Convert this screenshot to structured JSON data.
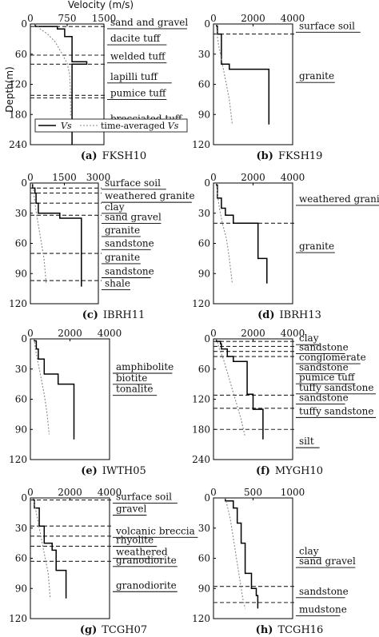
{
  "figure": {
    "velocity_label": "Velocity (m/s)",
    "depth_label": "Depth(m)"
  },
  "legend": {
    "vs_label": "Vs",
    "avg_prefix": "time-averaged ",
    "avg_var": "Vs"
  },
  "chart_data": [
    {
      "id": "a",
      "type": "line",
      "tag": "(a)",
      "title": "FKSH10",
      "xlabel": "Velocity (m/s)",
      "ylabel": "Depth(m)",
      "xlim": [
        0,
        1500
      ],
      "ylim": [
        0,
        240
      ],
      "x_ticks": [
        "0",
        "750",
        "1500"
      ],
      "y_ticks": [
        "0",
        "60",
        "120",
        "180",
        "240"
      ],
      "series": [
        {
          "name": "Vs",
          "points": [
            [
              100,
              0
            ],
            [
              100,
              5
            ],
            [
              550,
              5
            ],
            [
              550,
              10
            ],
            [
              700,
              10
            ],
            [
              700,
              25
            ],
            [
              850,
              25
            ],
            [
              850,
              75
            ],
            [
              1150,
              75
            ],
            [
              1150,
              80
            ],
            [
              850,
              80
            ],
            [
              850,
              250
            ]
          ]
        },
        {
          "name": "time-averaged Vs",
          "points": [
            [
              100,
              0
            ],
            [
              200,
              10
            ],
            [
              350,
              20
            ],
            [
              500,
              35
            ],
            [
              650,
              60
            ],
            [
              750,
              78
            ],
            [
              800,
              100
            ],
            [
              815,
              130
            ],
            [
              820,
              160
            ],
            [
              820,
              185
            ]
          ]
        }
      ],
      "layer_depths": [
        5,
        62,
        80,
        142,
        147
      ],
      "layers": [
        {
          "label": "sand and gravel",
          "depth": 3
        },
        {
          "label": "dacite tuff",
          "depth": 35
        },
        {
          "label": "welded tuff",
          "depth": 71
        },
        {
          "label": "lapilli tuff",
          "depth": 111
        },
        {
          "label": "pumice tuff",
          "depth": 144
        },
        {
          "label": "brecciated tuff",
          "depth": 195
        }
      ]
    },
    {
      "id": "b",
      "type": "line",
      "tag": "(b)",
      "title": "FKSH19",
      "xlabel": "Velocity (m/s)",
      "ylabel": "Depth(m)",
      "xlim": [
        0,
        4000
      ],
      "ylim": [
        0,
        120
      ],
      "x_ticks": [
        "0",
        "2000",
        "4000"
      ],
      "y_ticks": [
        "0",
        "30",
        "60",
        "90",
        "120"
      ],
      "series": [
        {
          "name": "Vs",
          "points": [
            [
              150,
              0
            ],
            [
              150,
              2
            ],
            [
              200,
              2
            ],
            [
              200,
              10
            ],
            [
              400,
              10
            ],
            [
              400,
              40
            ],
            [
              800,
              40
            ],
            [
              800,
              45
            ],
            [
              2800,
              45
            ],
            [
              2800,
              100
            ]
          ]
        },
        {
          "name": "time-averaged Vs",
          "points": [
            [
              150,
              0
            ],
            [
              180,
              10
            ],
            [
              250,
              20
            ],
            [
              400,
              35
            ],
            [
              600,
              55
            ],
            [
              800,
              75
            ],
            [
              950,
              100
            ]
          ]
        }
      ],
      "layer_depths": [
        10
      ],
      "layers": [
        {
          "label": "surface soil",
          "depth": 5
        },
        {
          "label": "granite",
          "depth": 55
        }
      ]
    },
    {
      "id": "c",
      "type": "line",
      "tag": "(c)",
      "title": "IBRH11",
      "xlabel": "Velocity (m/s)",
      "ylabel": "Depth(m)",
      "xlim": [
        0,
        3000
      ],
      "ylim": [
        0,
        120
      ],
      "x_ticks": [
        "0",
        "1500",
        "3000"
      ],
      "y_ticks": [
        "0",
        "30",
        "60",
        "90",
        "120"
      ],
      "series": [
        {
          "name": "Vs",
          "points": [
            [
              100,
              0
            ],
            [
              100,
              5
            ],
            [
              200,
              5
            ],
            [
              200,
              10
            ],
            [
              250,
              10
            ],
            [
              250,
              20
            ],
            [
              350,
              20
            ],
            [
              350,
              30
            ],
            [
              1300,
              30
            ],
            [
              1300,
              35
            ],
            [
              2250,
              35
            ],
            [
              2250,
              103
            ]
          ]
        },
        {
          "name": "time-averaged Vs",
          "points": [
            [
              100,
              0
            ],
            [
              150,
              10
            ],
            [
              200,
              20
            ],
            [
              300,
              35
            ],
            [
              450,
              55
            ],
            [
              600,
              75
            ],
            [
              700,
              100
            ]
          ]
        }
      ],
      "layer_depths": [
        5,
        10,
        20,
        32,
        70,
        97
      ],
      "layers": [
        {
          "label": "surface soil",
          "depth": 3
        },
        {
          "label": "weathered granite",
          "depth": 16
        },
        {
          "label": "clay",
          "depth": 27
        },
        {
          "label": "sand gravel",
          "depth": 37
        },
        {
          "label": "granite",
          "depth": 50
        },
        {
          "label": "sandstone",
          "depth": 63
        },
        {
          "label": "granite",
          "depth": 77
        },
        {
          "label": "sandstone",
          "depth": 91
        },
        {
          "label": "shale",
          "depth": 103
        }
      ]
    },
    {
      "id": "d",
      "type": "line",
      "tag": "(d)",
      "title": "IBRH13",
      "xlabel": "Velocity (m/s)",
      "ylabel": "Depth(m)",
      "xlim": [
        0,
        4000
      ],
      "ylim": [
        0,
        120
      ],
      "x_ticks": [
        "0",
        "2000",
        "4000"
      ],
      "y_ticks": [
        "0",
        "30",
        "60",
        "90",
        "120"
      ],
      "series": [
        {
          "name": "Vs",
          "points": [
            [
              150,
              0
            ],
            [
              150,
              2
            ],
            [
              200,
              2
            ],
            [
              200,
              15
            ],
            [
              400,
              15
            ],
            [
              400,
              25
            ],
            [
              600,
              25
            ],
            [
              600,
              32
            ],
            [
              1000,
              32
            ],
            [
              1000,
              40
            ],
            [
              2250,
              40
            ],
            [
              2250,
              75
            ],
            [
              2700,
              75
            ],
            [
              2700,
              100
            ]
          ]
        },
        {
          "name": "time-averaged Vs",
          "points": [
            [
              150,
              0
            ],
            [
              200,
              10
            ],
            [
              300,
              25
            ],
            [
              450,
              40
            ],
            [
              650,
              55
            ],
            [
              800,
              75
            ],
            [
              950,
              100
            ]
          ]
        }
      ],
      "layer_depths": [
        40
      ],
      "layers": [
        {
          "label": "weathered granite",
          "depth": 19
        },
        {
          "label": "granite",
          "depth": 66
        }
      ]
    },
    {
      "id": "e",
      "type": "line",
      "tag": "(e)",
      "title": "IWTH05",
      "xlabel": "Velocity (m/s)",
      "ylabel": "Depth(m)",
      "xlim": [
        0,
        4000
      ],
      "ylim": [
        0,
        120
      ],
      "x_ticks": [
        "0",
        "2000",
        "4000"
      ],
      "y_ticks": [
        "0",
        "30",
        "60",
        "90",
        "120"
      ],
      "series": [
        {
          "name": "Vs",
          "points": [
            [
              200,
              0
            ],
            [
              200,
              2
            ],
            [
              300,
              2
            ],
            [
              300,
              10
            ],
            [
              400,
              10
            ],
            [
              400,
              20
            ],
            [
              700,
              20
            ],
            [
              700,
              35
            ],
            [
              1400,
              35
            ],
            [
              1400,
              45
            ],
            [
              2200,
              45
            ],
            [
              2200,
              100
            ]
          ]
        },
        {
          "name": "time-averaged Vs",
          "points": [
            [
              200,
              0
            ],
            [
              250,
              10
            ],
            [
              350,
              20
            ],
            [
              500,
              35
            ],
            [
              700,
              55
            ],
            [
              850,
              75
            ],
            [
              950,
              95
            ]
          ]
        }
      ],
      "layer_depths": [],
      "layers": [
        {
          "label": "amphibolite",
          "depth": 31
        },
        {
          "label": "biotite",
          "depth": 42
        },
        {
          "label": "tonalite",
          "depth": 53
        }
      ]
    },
    {
      "id": "f",
      "type": "line",
      "tag": "(f)",
      "title": "MYGH10",
      "xlabel": "Velocity (m/s)",
      "ylabel": "Depth(m)",
      "xlim": [
        0,
        4000
      ],
      "ylim": [
        0,
        240
      ],
      "x_ticks": [
        "0",
        "2000",
        "4000"
      ],
      "y_ticks": [
        "0",
        "60",
        "120",
        "180",
        "240"
      ],
      "series": [
        {
          "name": "Vs",
          "points": [
            [
              150,
              0
            ],
            [
              150,
              5
            ],
            [
              350,
              5
            ],
            [
              350,
              10
            ],
            [
              400,
              10
            ],
            [
              400,
              20
            ],
            [
              700,
              20
            ],
            [
              700,
              35
            ],
            [
              1000,
              35
            ],
            [
              1000,
              45
            ],
            [
              1700,
              45
            ],
            [
              1700,
              110
            ],
            [
              2000,
              110
            ],
            [
              2000,
              140
            ],
            [
              2500,
              140
            ],
            [
              2500,
              200
            ]
          ]
        },
        {
          "name": "time-averaged Vs",
          "points": [
            [
              150,
              0
            ],
            [
              300,
              20
            ],
            [
              500,
              40
            ],
            [
              800,
              80
            ],
            [
              1100,
              120
            ],
            [
              1400,
              160
            ],
            [
              1600,
              195
            ]
          ]
        }
      ],
      "layer_depths": [
        5,
        15,
        25,
        35,
        112,
        138,
        180
      ],
      "layers": [
        {
          "label": "clay",
          "depth": 5
        },
        {
          "label": "sandstone",
          "depth": 23
        },
        {
          "label": "conglomerate",
          "depth": 43
        },
        {
          "label": "sandstone",
          "depth": 63
        },
        {
          "label": "pumice tuff",
          "depth": 83
        },
        {
          "label": "tuffy sandstone",
          "depth": 103
        },
        {
          "label": "sandstone",
          "depth": 123
        },
        {
          "label": "tuffy sandstone",
          "depth": 150
        },
        {
          "label": "silt",
          "depth": 210
        }
      ]
    },
    {
      "id": "g",
      "type": "line",
      "tag": "(g)",
      "title": "TCGH07",
      "xlabel": "Velocity (m/s)",
      "ylabel": "Depth(m)",
      "xlim": [
        0,
        4000
      ],
      "ylim": [
        0,
        120
      ],
      "x_ticks": [
        "0",
        "2000",
        "4000"
      ],
      "y_ticks": [
        "0",
        "30",
        "60",
        "90",
        "120"
      ],
      "series": [
        {
          "name": "Vs",
          "points": [
            [
              150,
              0
            ],
            [
              150,
              2
            ],
            [
              200,
              2
            ],
            [
              200,
              10
            ],
            [
              450,
              10
            ],
            [
              450,
              28
            ],
            [
              700,
              28
            ],
            [
              700,
              45
            ],
            [
              1100,
              45
            ],
            [
              1100,
              52
            ],
            [
              1300,
              52
            ],
            [
              1300,
              72
            ],
            [
              1800,
              72
            ],
            [
              1800,
              100
            ]
          ]
        },
        {
          "name": "time-averaged Vs",
          "points": [
            [
              150,
              0
            ],
            [
              250,
              10
            ],
            [
              400,
              25
            ],
            [
              550,
              40
            ],
            [
              700,
              55
            ],
            [
              900,
              75
            ],
            [
              1000,
              100
            ]
          ]
        }
      ],
      "layer_depths": [
        2,
        28,
        38,
        48,
        63
      ],
      "layers": [
        {
          "label": "surface soil",
          "depth": 2
        },
        {
          "label": "gravel",
          "depth": 14
        },
        {
          "label": "volcanic breccia",
          "depth": 36
        },
        {
          "label": "rhyolite",
          "depth": 45
        },
        {
          "label": "weathered",
          "depth": 57
        },
        {
          "label": "granodiorite",
          "depth": 65
        },
        {
          "label": "granodiorite",
          "depth": 90
        }
      ]
    },
    {
      "id": "h",
      "type": "line",
      "tag": "(h)",
      "title": "TCGH16",
      "xlabel": "Velocity (m/s)",
      "ylabel": "Depth(m)",
      "xlim": [
        0,
        1000
      ],
      "ylim": [
        0,
        120
      ],
      "x_ticks": [
        "0",
        "500",
        "1000"
      ],
      "y_ticks": [
        "0",
        "30",
        "60",
        "90",
        "120"
      ],
      "series": [
        {
          "name": "Vs",
          "points": [
            [
              150,
              0
            ],
            [
              150,
              3
            ],
            [
              250,
              3
            ],
            [
              250,
              10
            ],
            [
              300,
              10
            ],
            [
              300,
              25
            ],
            [
              350,
              25
            ],
            [
              350,
              45
            ],
            [
              400,
              45
            ],
            [
              400,
              75
            ],
            [
              480,
              75
            ],
            [
              480,
              90
            ],
            [
              540,
              90
            ],
            [
              540,
              97
            ],
            [
              560,
              97
            ],
            [
              560,
              110
            ]
          ]
        },
        {
          "name": "time-averaged Vs",
          "points": [
            [
              150,
              0
            ],
            [
              180,
              10
            ],
            [
              210,
              20
            ],
            [
              250,
              40
            ],
            [
              290,
              60
            ],
            [
              330,
              80
            ],
            [
              370,
              100
            ],
            [
              400,
              110
            ]
          ]
        }
      ],
      "layer_depths": [
        88,
        104
      ],
      "layers": [
        {
          "label": "clay",
          "depth": 56
        },
        {
          "label": "sand gravel",
          "depth": 66
        },
        {
          "label": "sandstone",
          "depth": 96
        },
        {
          "label": "mudstone",
          "depth": 114
        }
      ]
    }
  ]
}
